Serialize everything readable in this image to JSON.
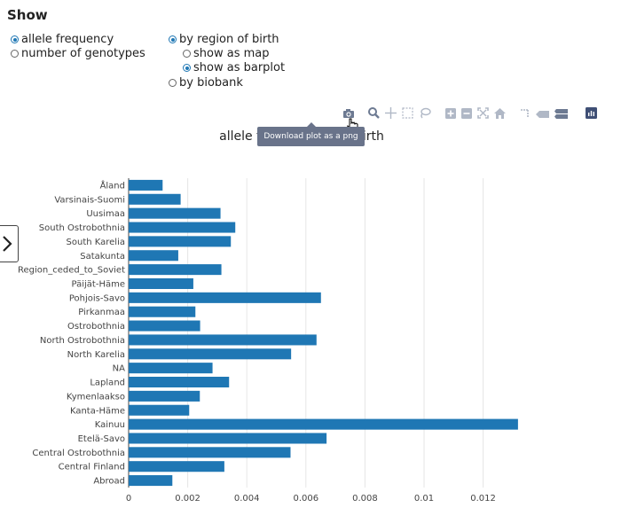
{
  "show": {
    "title": "Show",
    "metric_options": [
      {
        "label": "allele frequency",
        "checked": true
      },
      {
        "label": "number of genotypes",
        "checked": false
      }
    ],
    "group_options": [
      {
        "label": "by region of birth",
        "checked": true
      },
      {
        "label": "by biobank",
        "checked": false
      }
    ],
    "view_options": [
      {
        "label": "show as map",
        "checked": false
      },
      {
        "label": "show as barplot",
        "checked": true
      }
    ]
  },
  "modebar": {
    "tooltip": "Download plot as a png",
    "icons": [
      "camera-icon",
      "zoom-icon",
      "pan-icon",
      "box-select-icon",
      "lasso-select-icon",
      "zoom-in-icon",
      "zoom-out-icon",
      "autoscale-icon",
      "reset-axes-icon",
      "spike-lines-icon",
      "hover-closest-icon",
      "hover-compare-icon",
      "plotly-logo-icon"
    ],
    "icon_color": "#b0b8c6",
    "logo_color": "#3f4f75"
  },
  "chart_data": {
    "type": "bar",
    "orientation": "horizontal",
    "title": "allele frequency by region of birth",
    "title_visible_left": "allele freq",
    "title_visible_right": "of birth",
    "bar_color": "#1f77b4",
    "grid": true,
    "xlim": [
      0,
      0.0135
    ],
    "x_ticks": [
      0,
      0.002,
      0.004,
      0.006,
      0.008,
      0.01,
      0.012
    ],
    "x_tick_labels": [
      "0",
      "0.002",
      "0.004",
      "0.006",
      "0.008",
      "0.01",
      "0.012"
    ],
    "categories": [
      "Åland",
      "Varsinais-Suomi",
      "Uusimaa",
      "South Ostrobothnia",
      "South Karelia",
      "Satakunta",
      "Region_ceded_to_Soviet",
      "Päijät-Häme",
      "Pohjois-Savo",
      "Pirkanmaa",
      "Ostrobothnia",
      "North Ostrobothnia",
      "North Karelia",
      "NA",
      "Lapland",
      "Kymenlaakso",
      "Kanta-Häme",
      "Kainuu",
      "Etelä-Savo",
      "Central Ostrobothnia",
      "Central Finland",
      "Abroad"
    ],
    "values": [
      0.00115,
      0.00176,
      0.00311,
      0.00361,
      0.00346,
      0.00168,
      0.00314,
      0.00219,
      0.00651,
      0.00226,
      0.00242,
      0.00636,
      0.0055,
      0.00284,
      0.0034,
      0.00241,
      0.00205,
      0.01318,
      0.0067,
      0.00548,
      0.00324,
      0.00148
    ]
  }
}
